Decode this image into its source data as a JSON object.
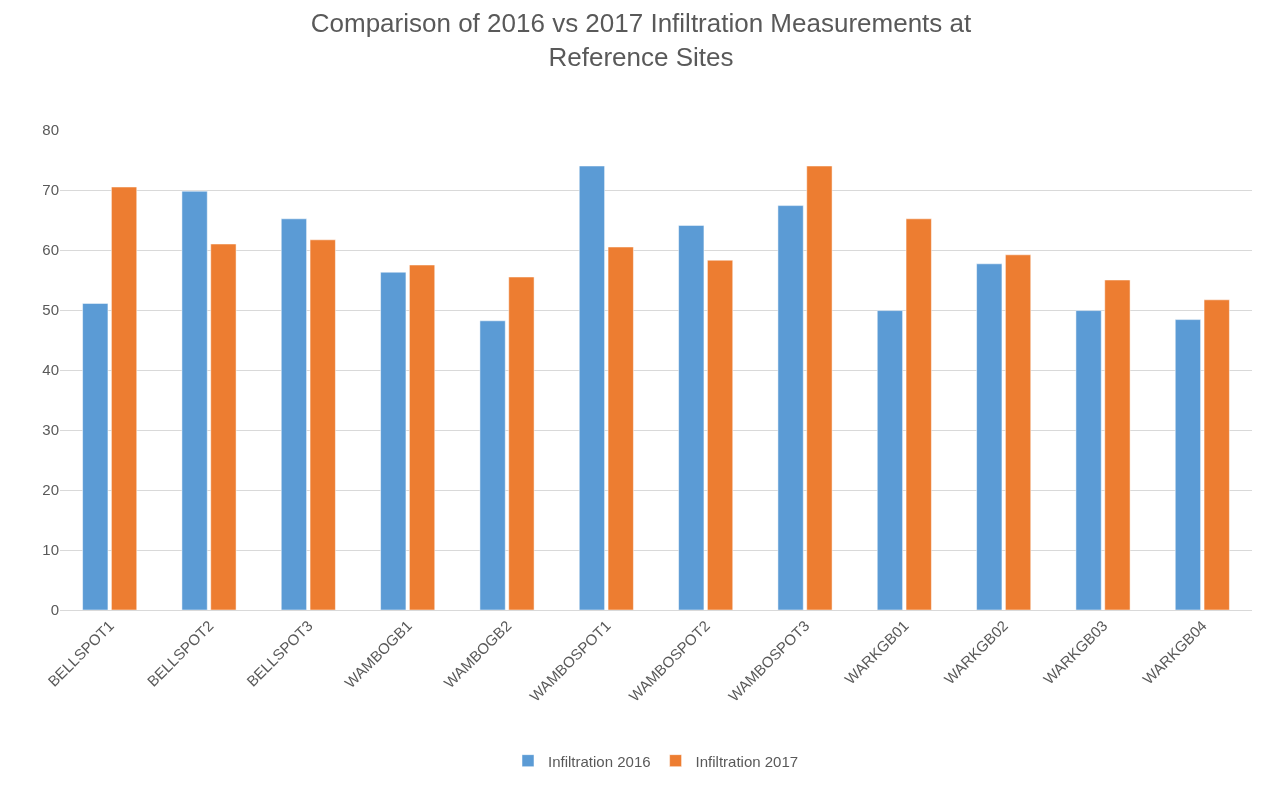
{
  "chart_data": {
    "type": "bar",
    "title": "Comparison of 2016 vs 2017 Infiltration Measurements at Reference Sites",
    "categories": [
      "BELLSPOT1",
      "BELLSPOT2",
      "BELLSPOT3",
      "WAMBOGB1",
      "WAMBOGB2",
      "WAMBOSPOT1",
      "WAMBOSPOT2",
      "WAMBOSPOT3",
      "WARKGB01",
      "WARKGB02",
      "WARKGB03",
      "WARKGB04"
    ],
    "series": [
      {
        "name": "Infiltration 2016",
        "color": "#5b9bd5",
        "values": [
          51.1,
          69.8,
          65.2,
          56.3,
          48.2,
          74.0,
          64.1,
          67.4,
          49.9,
          57.7,
          49.9,
          48.4
        ]
      },
      {
        "name": "Infiltration 2017",
        "color": "#ed7d31",
        "values": [
          70.5,
          61.0,
          61.7,
          57.5,
          55.5,
          60.5,
          58.3,
          74.0,
          65.2,
          59.2,
          55.0,
          51.7
        ]
      }
    ],
    "ylim": [
      0,
      80
    ],
    "yticks": [
      0,
      10,
      20,
      30,
      40,
      50,
      60,
      70,
      80
    ],
    "grid": "y",
    "legend": "bottom"
  }
}
